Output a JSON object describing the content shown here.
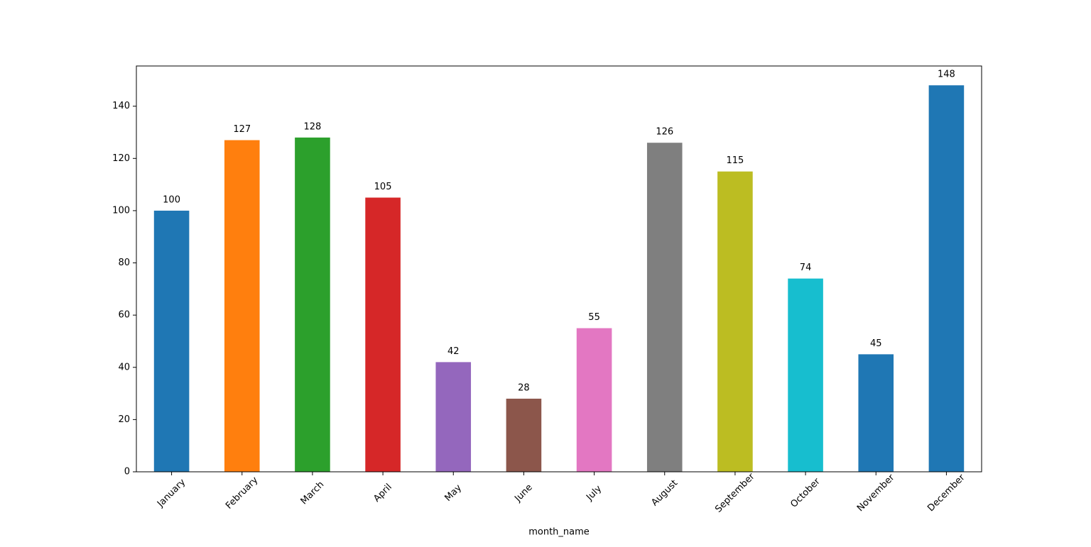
{
  "chart_data": {
    "type": "bar",
    "x_label": "month_name",
    "categories": [
      "January",
      "February",
      "March",
      "April",
      "May",
      "June",
      "July",
      "August",
      "September",
      "October",
      "November",
      "December"
    ],
    "values": [
      100,
      127,
      128,
      105,
      42,
      28,
      55,
      126,
      115,
      74,
      45,
      148
    ],
    "colors": [
      "#1f77b4",
      "#ff7f0e",
      "#2ca02c",
      "#d62728",
      "#9467bd",
      "#8c564b",
      "#e377c2",
      "#7f7f7f",
      "#bcbd22",
      "#17becf",
      "#1f77b4",
      "#1f77b4"
    ],
    "ylim": [
      0,
      155.4
    ],
    "yticks": [
      0,
      20,
      40,
      60,
      80,
      100,
      120,
      140
    ],
    "grid": false
  }
}
